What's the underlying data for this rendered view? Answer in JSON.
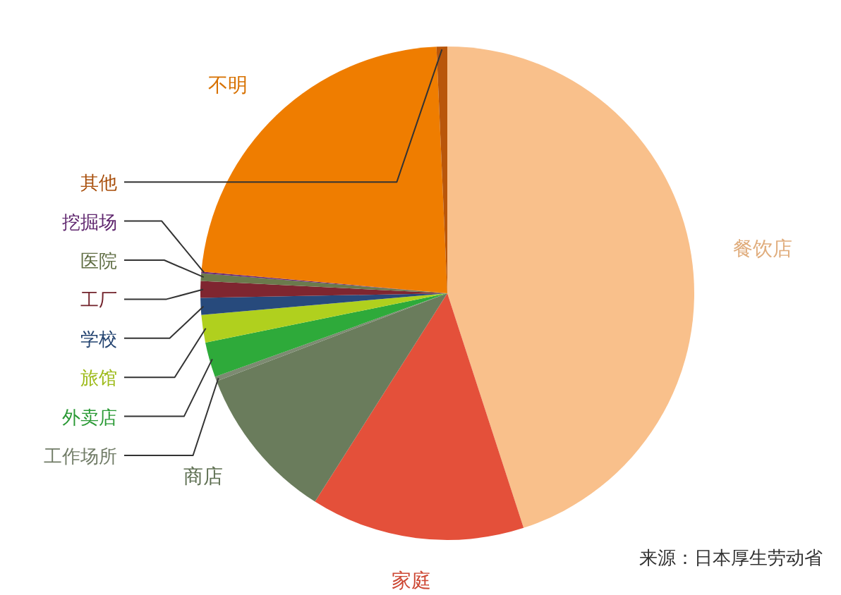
{
  "chart_data": {
    "type": "pie",
    "categories": [
      "餐饮店",
      "家庭",
      "商店",
      "工作场所",
      "外卖店",
      "旅馆",
      "学校",
      "工厂",
      "医院",
      "挖掘场",
      "不明",
      "其他"
    ],
    "values": [
      45,
      14,
      10.2,
      0.3,
      2.3,
      1.8,
      1.1,
      1.1,
      0.5,
      0.1,
      22.9,
      0.7
    ],
    "colors": [
      "#f9c08b",
      "#e4503a",
      "#6a7c5c",
      "#7d8a72",
      "#2eaa3a",
      "#b0d01e",
      "#274a7c",
      "#7f2630",
      "#6b7a4c",
      "#6a2a7a",
      "#ef7d00",
      "#b9560a"
    ],
    "legend": false,
    "annotations": [
      "来源：日本厚生劳动省"
    ]
  }
}
